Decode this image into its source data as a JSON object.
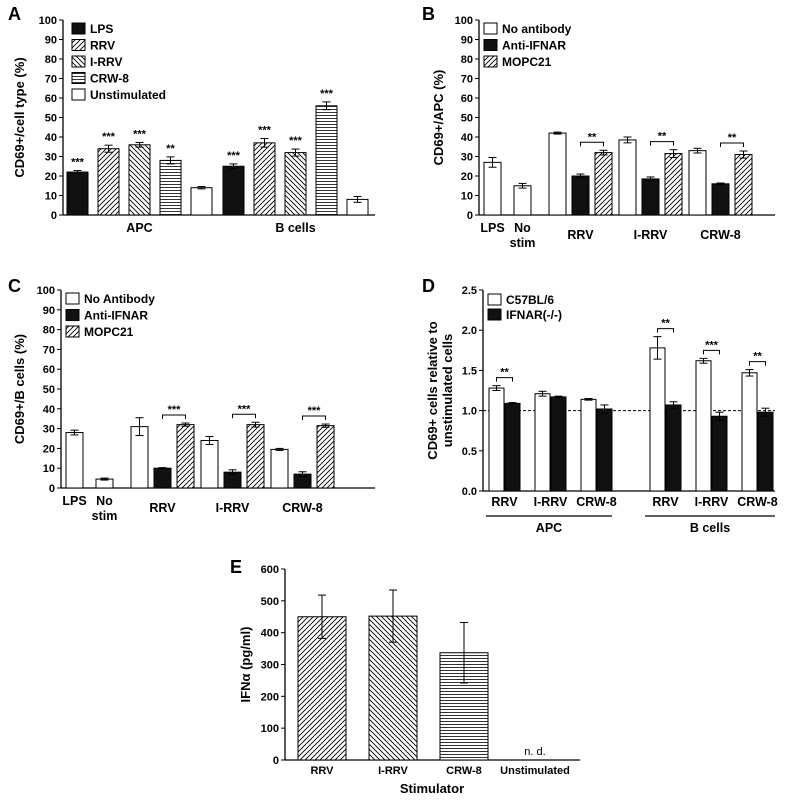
{
  "colors": {
    "black": "#111111",
    "white": "#ffffff",
    "line": "#000000"
  },
  "chart_data": [
    {
      "panel": "A",
      "type": "bar",
      "ylabel": "CD69+/cell type (%)",
      "ylim": [
        0,
        100
      ],
      "yticks": [
        0,
        10,
        20,
        30,
        40,
        50,
        60,
        70,
        80,
        90,
        100
      ],
      "yticklabels": [
        "0",
        "10",
        "20",
        "30",
        "40",
        "50",
        "60",
        "70",
        "80",
        "90",
        "100"
      ],
      "groups": [
        "APC",
        "B cells"
      ],
      "series": [
        {
          "name": "LPS",
          "pattern": "solid",
          "values": [
            22,
            25
          ],
          "errors": [
            0.8,
            1.2
          ],
          "sig": [
            "***",
            "***"
          ]
        },
        {
          "name": "RRV",
          "pattern": "diag",
          "values": [
            34,
            37
          ],
          "errors": [
            1.8,
            2.2
          ],
          "sig": [
            "***",
            "***"
          ]
        },
        {
          "name": "I-RRV",
          "pattern": "antidiag",
          "values": [
            36,
            32
          ],
          "errors": [
            1.2,
            1.8
          ],
          "sig": [
            "***",
            "***"
          ]
        },
        {
          "name": "CRW-8",
          "pattern": "hlines",
          "values": [
            28,
            56
          ],
          "errors": [
            1.8,
            2.0
          ],
          "sig": [
            "**",
            "***"
          ]
        },
        {
          "name": "Unstimulated",
          "pattern": "white",
          "values": [
            14,
            8
          ],
          "errors": [
            0.6,
            1.5
          ],
          "sig": [
            "",
            ""
          ]
        }
      ]
    },
    {
      "panel": "B",
      "type": "bar",
      "ylabel": "CD69+/APC (%)",
      "ylim": [
        0,
        100
      ],
      "yticks": [
        0,
        10,
        20,
        30,
        40,
        50,
        60,
        70,
        80,
        90,
        100
      ],
      "yticklabels": [
        "0",
        "10",
        "20",
        "30",
        "40",
        "50",
        "60",
        "70",
        "80",
        "90",
        "100"
      ],
      "legend": [
        {
          "name": "No antibody",
          "pattern": "white"
        },
        {
          "name": "Anti-IFNAR",
          "pattern": "solid"
        },
        {
          "name": "MOPC21",
          "pattern": "diag"
        }
      ],
      "controls": [
        {
          "label": "LPS",
          "label2": "",
          "value": 27,
          "error": 2.5
        },
        {
          "label": "No",
          "label2": "stim",
          "value": 15,
          "error": 1.2
        }
      ],
      "groups": [
        {
          "label": "RRV",
          "values": [
            42,
            20,
            32
          ],
          "errors": [
            0.5,
            1.0,
            1.2
          ],
          "sig": "**"
        },
        {
          "label": "I-RRV",
          "values": [
            38.5,
            18.5,
            31.5
          ],
          "errors": [
            1.5,
            1.0,
            2.0
          ],
          "sig": "**"
        },
        {
          "label": "CRW-8",
          "values": [
            33,
            16,
            31
          ],
          "errors": [
            1.2,
            0.4,
            1.8
          ],
          "sig": "**"
        }
      ]
    },
    {
      "panel": "C",
      "type": "bar",
      "ylabel": "CD69+/B cells (%)",
      "ylim": [
        0,
        100
      ],
      "yticks": [
        0,
        10,
        20,
        30,
        40,
        50,
        60,
        70,
        80,
        90,
        100
      ],
      "yticklabels": [
        "0",
        "10",
        "20",
        "30",
        "40",
        "50",
        "60",
        "70",
        "80",
        "90",
        "100"
      ],
      "legend": [
        {
          "name": "No Antibody",
          "pattern": "white"
        },
        {
          "name": "Anti-IFNAR",
          "pattern": "solid"
        },
        {
          "name": "MOPC21",
          "pattern": "diag"
        }
      ],
      "controls": [
        {
          "label": "LPS",
          "label2": "",
          "value": 28,
          "error": 1.2
        },
        {
          "label": "No",
          "label2": "stim",
          "value": 4.5,
          "error": 0.5
        }
      ],
      "groups": [
        {
          "label": "RRV",
          "values": [
            31,
            10,
            32
          ],
          "errors": [
            4.5,
            0.3,
            0.8
          ],
          "sig": "***"
        },
        {
          "label": "I-RRV",
          "values": [
            24,
            8,
            32
          ],
          "errors": [
            2.0,
            1.2,
            1.2
          ],
          "sig": "***"
        },
        {
          "label": "CRW-8",
          "values": [
            19.5,
            7,
            31.5
          ],
          "errors": [
            0.5,
            1.2,
            0.8
          ],
          "sig": "***"
        }
      ]
    },
    {
      "panel": "D",
      "type": "bar",
      "ylabel": [
        "CD69+ cells relative to",
        "unstimulated cells"
      ],
      "ylim": [
        0,
        2.5
      ],
      "yticks": [
        0,
        0.5,
        1.0,
        1.5,
        2.0,
        2.5
      ],
      "yticklabels": [
        "0.0",
        "0.5",
        "1.0",
        "1.5",
        "2.0",
        "2.5"
      ],
      "reference_line": 1.0,
      "legend": [
        {
          "name": "C57BL/6",
          "pattern": "white"
        },
        {
          "name": "IFNAR(-/-)",
          "pattern": "solid"
        }
      ],
      "categories": [
        "RRV",
        "I-RRV",
        "CRW-8",
        "RRV",
        "I-RRV",
        "CRW-8"
      ],
      "supergroups": [
        "APC",
        "B cells"
      ],
      "values": [
        [
          1.28,
          1.09
        ],
        [
          1.21,
          1.17
        ],
        [
          1.14,
          1.02
        ],
        [
          1.78,
          1.07
        ],
        [
          1.62,
          0.93
        ],
        [
          1.47,
          0.98
        ]
      ],
      "errors": [
        [
          0.03,
          0.01
        ],
        [
          0.03,
          0.01
        ],
        [
          0.01,
          0.05
        ],
        [
          0.14,
          0.04
        ],
        [
          0.03,
          0.05
        ],
        [
          0.04,
          0.05
        ]
      ],
      "sig": [
        "**",
        "",
        "",
        "**",
        "***",
        "**"
      ]
    },
    {
      "panel": "E",
      "type": "bar",
      "ylabel": "IFNα (pg/ml)",
      "xlabel": "Stimulator",
      "ylim": [
        0,
        600
      ],
      "yticks": [
        0,
        100,
        200,
        300,
        400,
        500,
        600
      ],
      "yticklabels": [
        "0",
        "100",
        "200",
        "300",
        "400",
        "500",
        "600"
      ],
      "categories": [
        "RRV",
        "I-RRV",
        "CRW-8",
        "Unstimulated"
      ],
      "values": [
        450,
        452,
        337,
        0
      ],
      "errors": [
        68,
        82,
        95,
        0
      ],
      "patterns": [
        "diag",
        "antidiag",
        "hlines",
        "none"
      ],
      "annotations": [
        "",
        "",
        "",
        "n. d."
      ]
    }
  ]
}
